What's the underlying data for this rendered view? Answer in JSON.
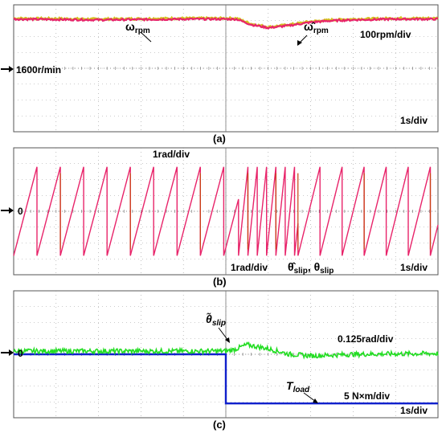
{
  "chart_data": [
    {
      "panel": "(a)",
      "type": "line",
      "colors": {
        "trace": "#e8246a",
        "trace_overlay": "#d4c020",
        "grid": "#9a9a9a"
      },
      "series": [
        {
          "name": "ω_rpm",
          "points": [
            [
              0,
              3.1
            ],
            [
              2.0,
              3.05
            ],
            [
              4.0,
              3.1
            ],
            [
              5.25,
              3.1
            ],
            [
              5.6,
              2.75
            ],
            [
              6.0,
              2.55
            ],
            [
              6.5,
              2.7
            ],
            [
              7.0,
              2.9
            ],
            [
              7.5,
              3.0
            ],
            [
              8.0,
              3.05
            ],
            [
              9.0,
              3.1
            ],
            [
              10.0,
              3.1
            ]
          ]
        },
        {
          "name": "ω̂_rpm",
          "points": [
            [
              0,
              3.15
            ],
            [
              2.0,
              3.1
            ],
            [
              4.0,
              3.15
            ],
            [
              5.25,
              3.15
            ],
            [
              5.6,
              2.8
            ],
            [
              6.0,
              2.6
            ],
            [
              6.5,
              2.75
            ],
            [
              7.0,
              2.95
            ],
            [
              7.5,
              3.05
            ],
            [
              8.0,
              3.1
            ],
            [
              9.0,
              3.15
            ],
            [
              10.0,
              3.15
            ]
          ]
        }
      ],
      "annotations": {
        "omega_rpm": "ω",
        "omega_sub": "rpm",
        "omega_hat": "ω̂",
        "omega_hat_sub": "rpm",
        "scale_y": "100rpm/div",
        "scale_x": "1s/div",
        "ref_level": "1600r/min"
      },
      "xlim": [
        0,
        10
      ],
      "ylim": [
        -4,
        4
      ]
    },
    {
      "panel": "(b)",
      "type": "line",
      "colors": {
        "theta_slip": "#e8246a",
        "theta_hat": "#c84010",
        "grid": "#9a9a9a"
      },
      "sawtooth_segments": [
        {
          "t_start": 0.0,
          "t_end": 5.3,
          "period": 0.55
        },
        {
          "t_start": 5.3,
          "t_end": 6.7,
          "period": 0.22
        },
        {
          "t_start": 6.7,
          "t_end": 10.0,
          "period": 0.52
        }
      ],
      "amplitude_div": 2.8,
      "annotations": {
        "scale_y_top": "1rad/div",
        "scale_y_bottom": "1rad/div",
        "theta_hat": "θ̂",
        "theta_hat_sub": "slip",
        "theta": "θ",
        "theta_sub": "slip",
        "scale_x": "1s/div",
        "zero": "0"
      },
      "xlim": [
        0,
        10
      ],
      "ylim": [
        -4,
        4
      ]
    },
    {
      "panel": "(c)",
      "type": "line",
      "colors": {
        "theta_tilde": "#22dd22",
        "t_load": "#1020cc",
        "grid": "#9a9a9a"
      },
      "series": [
        {
          "name": "θ̃_slip",
          "points": [
            [
              0,
              0.2
            ],
            [
              5.0,
              0.2
            ],
            [
              5.2,
              0.3
            ],
            [
              5.5,
              0.6
            ],
            [
              6.0,
              0.35
            ],
            [
              6.5,
              0.0
            ],
            [
              7.0,
              -0.1
            ],
            [
              8.0,
              0.0
            ],
            [
              10.0,
              0.05
            ]
          ]
        },
        {
          "name": "T_load",
          "points": [
            [
              0,
              0
            ],
            [
              5.0,
              0
            ],
            [
              5.0,
              -3.1
            ],
            [
              10.0,
              -3.1
            ]
          ]
        }
      ],
      "annotations": {
        "theta_tilde": "θ̃",
        "theta_tilde_sub": "slip",
        "scale_theta": "0.125rad/div",
        "t_load": "T",
        "t_load_sub": "load",
        "scale_t": "5 N×m/div",
        "scale_x": "1s/div",
        "zero": "0"
      },
      "xlim": [
        0,
        10
      ],
      "ylim": [
        -4,
        4
      ]
    }
  ],
  "captions": {
    "a": "(a)",
    "b": "(b)",
    "c": "(c)"
  }
}
